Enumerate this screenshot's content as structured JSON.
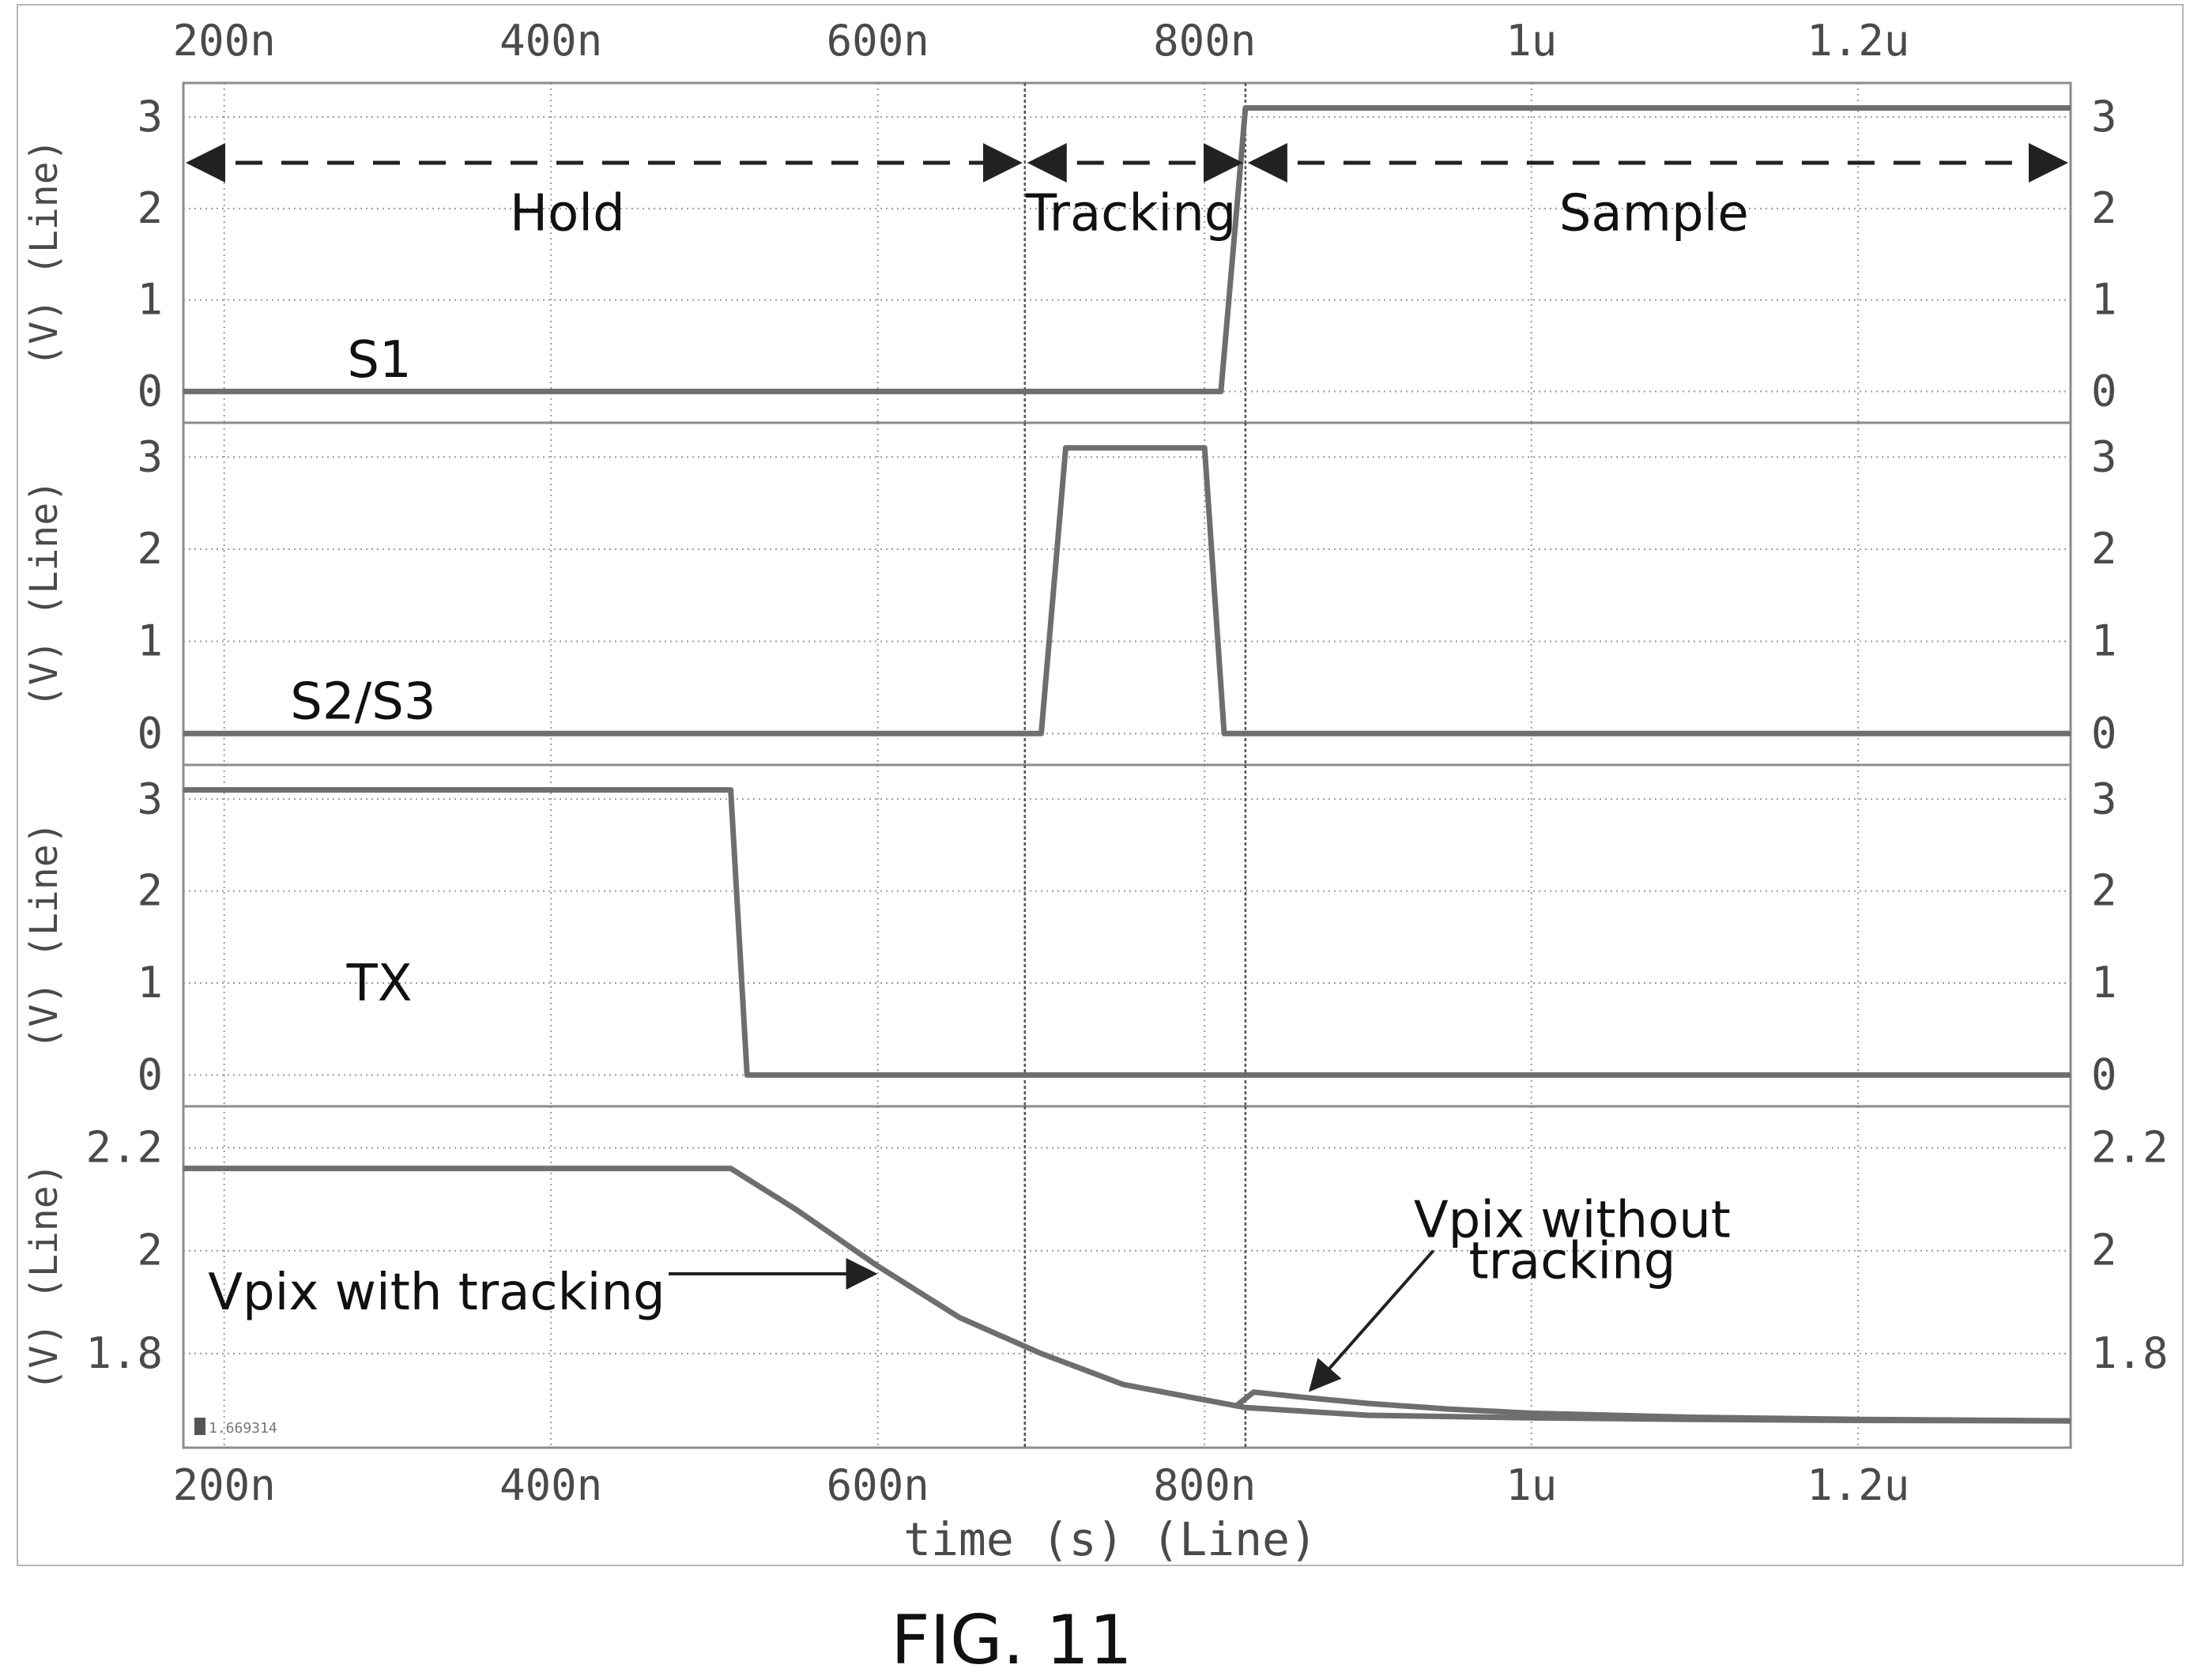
{
  "figure": {
    "caption": "FIG. 11"
  },
  "chart_data": {
    "type": "line",
    "x_unit": "s",
    "xlim": [
      1.75e-07,
      1.33e-06
    ],
    "xlabel": "time (s) (Line)",
    "x_ticks": [
      {
        "value": 2e-07,
        "label": "200n"
      },
      {
        "value": 4e-07,
        "label": "400n"
      },
      {
        "value": 6e-07,
        "label": "600n"
      },
      {
        "value": 8e-07,
        "label": "800n"
      },
      {
        "value": 1e-06,
        "label": "1u"
      },
      {
        "value": 1.2e-06,
        "label": "1.2u"
      }
    ],
    "cursors": [
      6.9e-07,
      8.25e-07
    ],
    "grid": true,
    "marker_label": "1.669314",
    "panels": [
      {
        "ylabel": "(V) (Line)",
        "ylim": [
          -0.1,
          3.2
        ],
        "y_ticks": [
          {
            "value": 0,
            "label": "0"
          },
          {
            "value": 1,
            "label": "1"
          },
          {
            "value": 2,
            "label": "2"
          },
          {
            "value": 3,
            "label": "3"
          }
        ],
        "series": [
          {
            "name": "S1",
            "x": [
              1.75e-07,
              8.1e-07,
              8.25e-07,
              1.33e-06
            ],
            "y": [
              0,
              0,
              3.1,
              3.1
            ]
          }
        ],
        "annotations": [
          {
            "text": "S1",
            "x": 2.95e-07,
            "y": 0.35,
            "anchor": "middle"
          },
          {
            "text": "Hold",
            "x": 4.1e-07,
            "y": 1.95,
            "anchor": "middle"
          },
          {
            "text": "Tracking",
            "x": 7.55e-07,
            "y": 1.95,
            "anchor": "middle"
          },
          {
            "text": "Sample",
            "x": 1.075e-06,
            "y": 1.95,
            "anchor": "middle"
          }
        ],
        "phase_arrows": [
          {
            "from": 1.75e-07,
            "to": 6.9e-07,
            "y": 2.5
          },
          {
            "from": 6.9e-07,
            "to": 8.25e-07,
            "y": 2.5
          },
          {
            "from": 8.25e-07,
            "to": 1.33e-06,
            "y": 2.5
          }
        ]
      },
      {
        "ylabel": "(V) (Line)",
        "ylim": [
          -0.1,
          3.2
        ],
        "y_ticks": [
          {
            "value": 0,
            "label": "0"
          },
          {
            "value": 1,
            "label": "1"
          },
          {
            "value": 2,
            "label": "2"
          },
          {
            "value": 3,
            "label": "3"
          }
        ],
        "series": [
          {
            "name": "S2/S3",
            "x": [
              1.75e-07,
              7e-07,
              7.15e-07,
              8e-07,
              8.12e-07,
              1.33e-06
            ],
            "y": [
              0,
              0,
              3.1,
              3.1,
              0,
              0
            ]
          }
        ],
        "annotations": [
          {
            "text": "S2/S3",
            "x": 2.85e-07,
            "y": 0.35,
            "anchor": "middle"
          }
        ]
      },
      {
        "ylabel": "(V) (Line)",
        "ylim": [
          -0.1,
          3.2
        ],
        "y_ticks": [
          {
            "value": 0,
            "label": "0"
          },
          {
            "value": 1,
            "label": "1"
          },
          {
            "value": 2,
            "label": "2"
          },
          {
            "value": 3,
            "label": "3"
          }
        ],
        "series": [
          {
            "name": "TX",
            "x": [
              1.75e-07,
              5.1e-07,
              5.2e-07,
              1.33e-06
            ],
            "y": [
              3.1,
              3.1,
              0,
              0
            ]
          }
        ],
        "annotations": [
          {
            "text": "TX",
            "x": 2.95e-07,
            "y": 1.0,
            "anchor": "middle"
          }
        ]
      },
      {
        "ylabel": "(V) (Line)",
        "ylim": [
          1.66,
          2.25
        ],
        "y_ticks": [
          {
            "value": 1.8,
            "label": "1.8"
          },
          {
            "value": 2.0,
            "label": "2"
          },
          {
            "value": 2.2,
            "label": "2.2"
          }
        ],
        "series": [
          {
            "name": "Vpix with tracking",
            "x": [
              1.75e-07,
              5.1e-07,
              5.5e-07,
              6e-07,
              6.5e-07,
              7e-07,
              7.5e-07,
              8e-07,
              8.25e-07,
              9e-07,
              1e-06,
              1.1e-06,
              1.2e-06,
              1.33e-06
            ],
            "y": [
              2.16,
              2.16,
              2.08,
              1.97,
              1.87,
              1.8,
              1.74,
              1.71,
              1.695,
              1.68,
              1.675,
              1.672,
              1.67,
              1.669
            ]
          },
          {
            "name": "Vpix without tracking",
            "x": [
              8.2e-07,
              8.3e-07,
              8.6e-07,
              9e-07,
              9.5e-07,
              1e-06,
              1.1e-06,
              1.2e-06,
              1.33e-06
            ],
            "y": [
              1.7,
              1.725,
              1.715,
              1.703,
              1.692,
              1.684,
              1.676,
              1.672,
              1.669
            ]
          }
        ],
        "annotations": [
          {
            "text": "Vpix with tracking",
            "x": 3.3e-07,
            "y": 1.92,
            "anchor": "middle"
          },
          {
            "text": "Vpix without",
            "x": 1.025e-06,
            "y": 2.06,
            "anchor": "middle"
          },
          {
            "text": "tracking",
            "x": 1.025e-06,
            "y": 1.98,
            "anchor": "middle"
          }
        ],
        "pointers": [
          {
            "from": [
              4.72e-07,
              1.955
            ],
            "to": [
              5.98e-07,
              1.955
            ]
          },
          {
            "from": [
              9.4e-07,
              2.0
            ],
            "to": [
              8.65e-07,
              1.73
            ]
          }
        ]
      }
    ]
  }
}
